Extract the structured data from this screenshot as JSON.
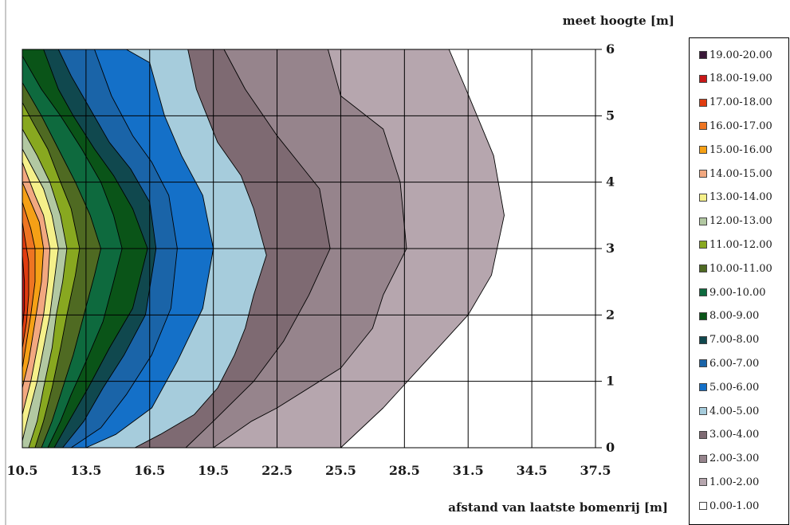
{
  "chart_data": {
    "type": "contour",
    "xlabel": "afstand van laatste bomenrij [m]",
    "ylabel": "meet hoogte [m]",
    "x_ticks": [
      10.5,
      13.5,
      16.5,
      19.5,
      22.5,
      25.5,
      28.5,
      31.5,
      34.5,
      37.5
    ],
    "y_ticks": [
      0,
      1,
      2,
      3,
      4,
      5,
      6
    ],
    "xlim": [
      10.5,
      37.5
    ],
    "ylim": [
      0,
      6
    ],
    "y_axis_side": "right",
    "grid": true,
    "legend_position": "right",
    "levels": [
      {
        "label": "19.00-20.00",
        "color": "#3a1838"
      },
      {
        "label": "18.00-19.00",
        "color": "#c81818"
      },
      {
        "label": "17.00-18.00",
        "color": "#e03c10"
      },
      {
        "label": "16.00-17.00",
        "color": "#ee7522"
      },
      {
        "label": "15.00-16.00",
        "color": "#f5a016"
      },
      {
        "label": "14.00-15.00",
        "color": "#f2a880"
      },
      {
        "label": "13.00-14.00",
        "color": "#f5f08a"
      },
      {
        "label": "12.00-13.00",
        "color": "#b2c8a2"
      },
      {
        "label": "11.00-12.00",
        "color": "#88a820"
      },
      {
        "label": "10.00-11.00",
        "color": "#4f6a22"
      },
      {
        "label": "9.00-10.00",
        "color": "#0e6a3e"
      },
      {
        "label": "8.00-9.00",
        "color": "#0a5418"
      },
      {
        "label": "7.00-8.00",
        "color": "#10484e"
      },
      {
        "label": "6.00-7.00",
        "color": "#1a64a8"
      },
      {
        "label": "5.00-6.00",
        "color": "#1470c8"
      },
      {
        "label": "4.00-5.00",
        "color": "#a6ccdc"
      },
      {
        "label": "3.00-4.00",
        "color": "#7e6a72"
      },
      {
        "label": "2.00-3.00",
        "color": "#96848c"
      },
      {
        "label": "1.00-2.00",
        "color": "#b6a6ae"
      },
      {
        "label": "0.00-1.00",
        "color": "#ffffff"
      }
    ],
    "contour_boundaries": [
      {
        "level": "0.00-1.00 / 1.00-2.00",
        "points": [
          [
            25.5,
            0
          ],
          [
            27.5,
            0.6
          ],
          [
            29.5,
            1.3
          ],
          [
            31.5,
            2
          ],
          [
            32.6,
            2.6
          ],
          [
            33.2,
            3.5
          ],
          [
            32.7,
            4.4
          ],
          [
            31.4,
            5.4
          ],
          [
            30.6,
            6
          ]
        ]
      },
      {
        "level": "1.00-2.00 / 2.00-3.00",
        "points": [
          [
            19.5,
            0
          ],
          [
            21.3,
            0.4
          ],
          [
            22.5,
            0.6
          ],
          [
            25.5,
            1.2
          ],
          [
            27.0,
            1.8
          ],
          [
            27.5,
            2.3
          ],
          [
            28.6,
            3
          ],
          [
            28.3,
            4
          ],
          [
            27.5,
            4.8
          ],
          [
            25.5,
            5.3
          ],
          [
            24.9,
            6
          ]
        ]
      },
      {
        "level": "2.00-3.00 / 3.00-4.00",
        "points": [
          [
            18.2,
            0
          ],
          [
            19.5,
            0.4
          ],
          [
            21.4,
            1
          ],
          [
            22.8,
            1.6
          ],
          [
            24.0,
            2.3
          ],
          [
            25.0,
            3
          ],
          [
            24.5,
            3.9
          ],
          [
            22.5,
            4.7
          ],
          [
            21.0,
            5.4
          ],
          [
            20.0,
            6
          ]
        ]
      },
      {
        "level": "3.00-4.00 / 4.00-5.00",
        "points": [
          [
            15.8,
            0
          ],
          [
            17.0,
            0.2
          ],
          [
            18.6,
            0.5
          ],
          [
            19.7,
            0.9
          ],
          [
            20.5,
            1.4
          ],
          [
            21.0,
            1.8
          ],
          [
            21.4,
            2.3
          ],
          [
            22.0,
            2.9
          ],
          [
            21.4,
            3.6
          ],
          [
            20.8,
            4.1
          ],
          [
            19.7,
            4.6
          ],
          [
            18.7,
            5.4
          ],
          [
            18.3,
            6
          ]
        ]
      },
      {
        "level": "4.00-5.00 / 5.00-6.00",
        "points": [
          [
            13.5,
            0
          ],
          [
            14.9,
            0.2
          ],
          [
            16.6,
            0.6
          ],
          [
            17.8,
            1.3
          ],
          [
            19.0,
            2.1
          ],
          [
            19.5,
            3
          ],
          [
            19.0,
            3.8
          ],
          [
            18.0,
            4.4
          ],
          [
            17.2,
            5
          ],
          [
            16.5,
            5.8
          ],
          [
            15.4,
            6
          ]
        ]
      },
      {
        "level": "5.00-6.00 / 6.00-7.00",
        "points": [
          [
            12.8,
            0
          ],
          [
            14.2,
            0.3
          ],
          [
            15.4,
            0.8
          ],
          [
            16.6,
            1.4
          ],
          [
            17.5,
            2.1
          ],
          [
            17.8,
            3
          ],
          [
            17.4,
            3.8
          ],
          [
            16.6,
            4.3
          ],
          [
            15.7,
            4.7
          ],
          [
            14.7,
            5.3
          ],
          [
            13.9,
            6
          ]
        ]
      },
      {
        "level": "6.00-7.00 / 7.00-8.00",
        "points": [
          [
            12.4,
            0
          ],
          [
            13.4,
            0.4
          ],
          [
            14.3,
            0.9
          ],
          [
            15.3,
            1.4
          ],
          [
            16.3,
            2
          ],
          [
            16.8,
            3
          ],
          [
            16.5,
            3.7
          ],
          [
            15.6,
            4.2
          ],
          [
            14.6,
            4.6
          ],
          [
            13.7,
            5.1
          ],
          [
            12.8,
            5.6
          ],
          [
            12.2,
            6
          ]
        ]
      },
      {
        "level": "7.00-8.00 / 8.00-9.00",
        "points": [
          [
            12.0,
            0
          ],
          [
            12.7,
            0.4
          ],
          [
            13.6,
            0.9
          ],
          [
            14.6,
            1.5
          ],
          [
            15.7,
            2.1
          ],
          [
            16.4,
            3
          ],
          [
            15.7,
            3.6
          ],
          [
            14.8,
            4.1
          ],
          [
            13.9,
            4.5
          ],
          [
            12.9,
            5
          ],
          [
            12.2,
            5.4
          ],
          [
            11.5,
            6
          ]
        ]
      },
      {
        "level": "8.00-9.00 / 9.00-10.00",
        "points": [
          [
            11.7,
            0
          ],
          [
            12.3,
            0.4
          ],
          [
            12.8,
            0.8
          ],
          [
            13.5,
            1.3
          ],
          [
            14.3,
            1.9
          ],
          [
            14.8,
            2.5
          ],
          [
            15.2,
            3
          ],
          [
            14.8,
            3.5
          ],
          [
            14.2,
            4
          ],
          [
            13.3,
            4.5
          ],
          [
            12.3,
            5
          ],
          [
            11.4,
            5.4
          ],
          [
            10.5,
            5.9
          ]
        ]
      },
      {
        "level": "9.00-10.00 / 10.00-11.00",
        "points": [
          [
            11.4,
            0
          ],
          [
            11.9,
            0.4
          ],
          [
            12.4,
            0.9
          ],
          [
            12.9,
            1.4
          ],
          [
            13.4,
            2
          ],
          [
            13.9,
            2.6
          ],
          [
            14.2,
            3
          ],
          [
            13.7,
            3.5
          ],
          [
            13.0,
            4
          ],
          [
            12.2,
            4.5
          ],
          [
            11.4,
            5
          ],
          [
            10.5,
            5.5
          ]
        ]
      },
      {
        "level": "10.00-11.00 / 11.00-12.00",
        "points": [
          [
            11.1,
            0
          ],
          [
            11.5,
            0.4
          ],
          [
            11.9,
            0.9
          ],
          [
            12.3,
            1.5
          ],
          [
            12.6,
            2
          ],
          [
            13.0,
            2.6
          ],
          [
            13.2,
            3
          ],
          [
            12.8,
            3.6
          ],
          [
            12.3,
            4
          ],
          [
            11.7,
            4.5
          ],
          [
            11.0,
            4.9
          ],
          [
            10.5,
            5.2
          ]
        ]
      },
      {
        "level": "11.00-12.00 / 12.00-13.00",
        "points": [
          [
            10.8,
            0
          ],
          [
            11.2,
            0.4
          ],
          [
            11.5,
            0.9
          ],
          [
            11.9,
            1.5
          ],
          [
            12.1,
            2
          ],
          [
            12.4,
            2.5
          ],
          [
            12.6,
            3
          ],
          [
            12.3,
            3.5
          ],
          [
            11.8,
            4
          ],
          [
            11.2,
            4.4
          ],
          [
            10.5,
            4.8
          ]
        ]
      },
      {
        "level": "12.00-13.00 / 13.00-14.00",
        "points": [
          [
            10.5,
            0.1
          ],
          [
            10.8,
            0.5
          ],
          [
            11.2,
            1
          ],
          [
            11.5,
            1.5
          ],
          [
            11.8,
            2
          ],
          [
            12.0,
            2.5
          ],
          [
            12.2,
            3
          ],
          [
            11.9,
            3.5
          ],
          [
            11.5,
            3.9
          ],
          [
            11.0,
            4.2
          ],
          [
            10.5,
            4.5
          ]
        ]
      },
      {
        "level": "13.00-14.00 / 14.00-15.00",
        "points": [
          [
            10.5,
            0.5
          ],
          [
            10.9,
            1
          ],
          [
            11.2,
            1.5
          ],
          [
            11.5,
            2
          ],
          [
            11.7,
            2.5
          ],
          [
            11.8,
            3
          ],
          [
            11.5,
            3.5
          ],
          [
            11.1,
            3.8
          ],
          [
            10.5,
            4.3
          ]
        ]
      },
      {
        "level": "14.00-15.00 / 15.00-16.00",
        "points": [
          [
            10.5,
            0.9
          ],
          [
            10.8,
            1.3
          ],
          [
            11.0,
            1.7
          ],
          [
            11.2,
            2.1
          ],
          [
            11.4,
            2.5
          ],
          [
            11.5,
            3
          ],
          [
            11.3,
            3.4
          ],
          [
            10.9,
            3.7
          ],
          [
            10.5,
            4
          ]
        ]
      },
      {
        "level": "15.00-16.00 / 16.00-17.00",
        "points": [
          [
            10.5,
            1.2
          ],
          [
            10.7,
            1.6
          ],
          [
            10.9,
            2
          ],
          [
            11.1,
            2.5
          ],
          [
            11.1,
            3
          ],
          [
            10.9,
            3.3
          ],
          [
            10.5,
            3.7
          ]
        ]
      },
      {
        "level": "16.00-17.00 / 17.00-18.00",
        "points": [
          [
            10.5,
            1.5
          ],
          [
            10.7,
            1.9
          ],
          [
            10.8,
            2.3
          ],
          [
            10.8,
            2.8
          ],
          [
            10.6,
            3.2
          ],
          [
            10.5,
            3.4
          ]
        ]
      },
      {
        "level": "17.00-18.00 / 18.00-19.00",
        "points": [
          [
            10.5,
            1.8
          ],
          [
            10.6,
            2.1
          ],
          [
            10.6,
            2.5
          ],
          [
            10.5,
            2.9
          ]
        ]
      }
    ]
  }
}
